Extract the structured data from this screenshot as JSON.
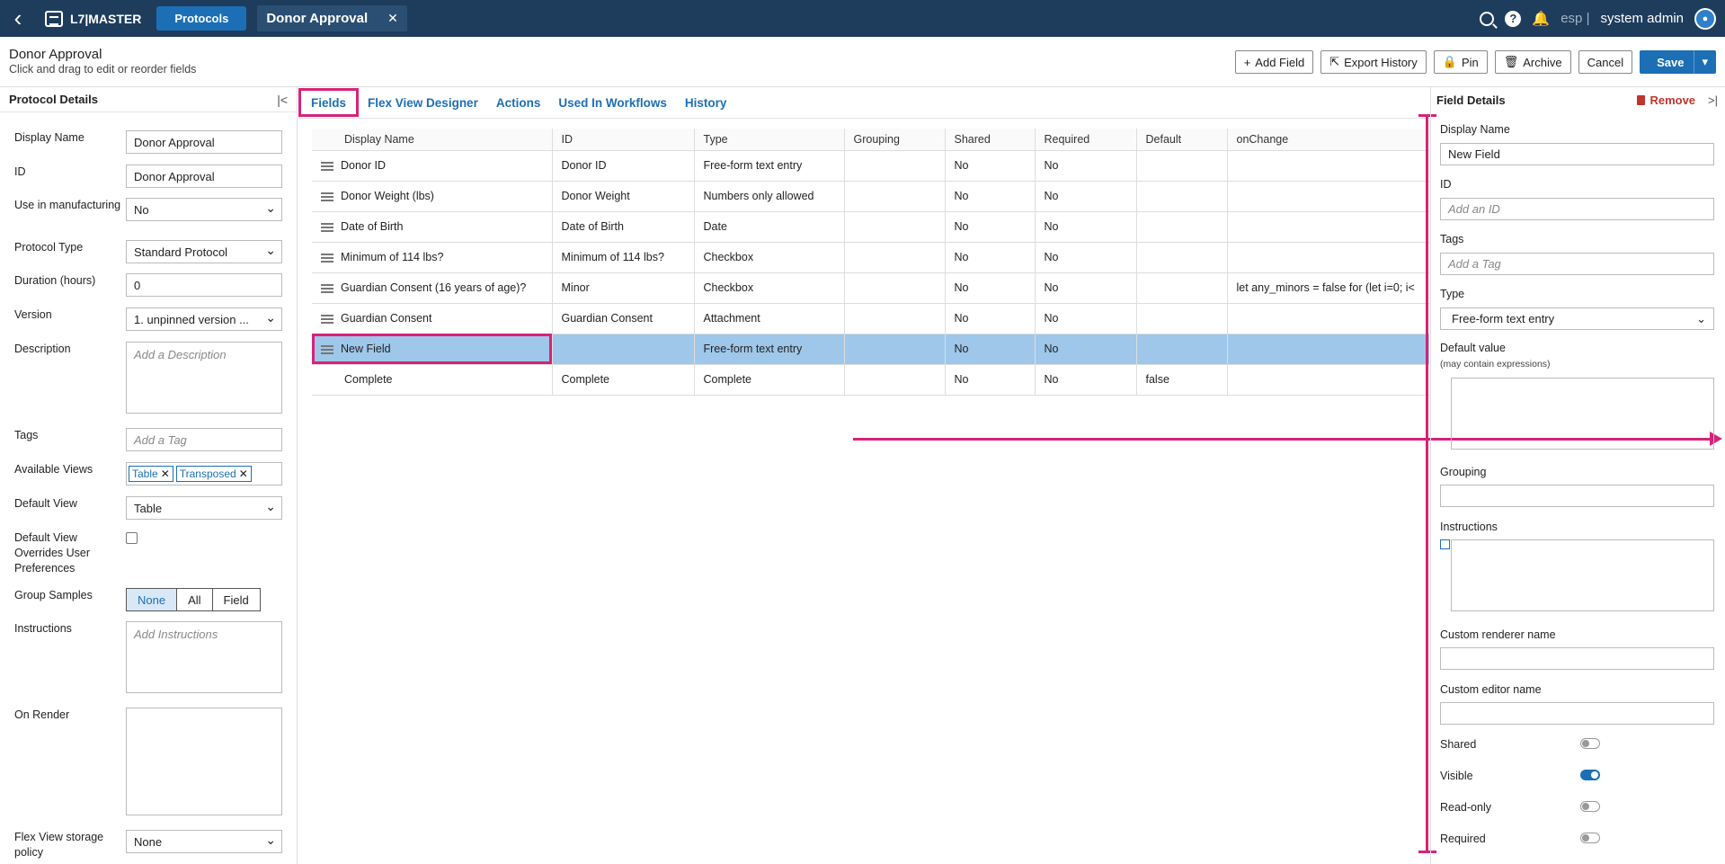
{
  "topbar": {
    "logo": "L7|MASTER",
    "nav_pill": "Protocols",
    "tab": "Donor Approval",
    "lang": "esp |",
    "user": "system admin"
  },
  "header": {
    "title": "Donor Approval",
    "subtitle": "Click and drag to edit or reorder fields",
    "actions": {
      "add_field": "Add Field",
      "export_history": "Export History",
      "pin": "Pin",
      "archive": "Archive",
      "cancel": "Cancel",
      "save": "Save"
    }
  },
  "left": {
    "title": "Protocol Details",
    "display_name_label": "Display Name",
    "display_name": "Donor Approval",
    "id_label": "ID",
    "id": "Donor Approval",
    "manufacturing_label": "Use in manufacturing",
    "manufacturing": "No",
    "protocol_type_label": "Protocol Type",
    "protocol_type": "Standard Protocol",
    "duration_label": "Duration (hours)",
    "duration": "0",
    "version_label": "Version",
    "version": "1. unpinned version ...",
    "description_label": "Description",
    "description_placeholder": "Add a Description",
    "tags_label": "Tags",
    "tags_placeholder": "Add a Tag",
    "views_label": "Available Views",
    "views": [
      "Table",
      "Transposed"
    ],
    "default_view_label": "Default View",
    "default_view": "Table",
    "override_label": "Default View Overrides User Preferences",
    "group_label": "Group Samples",
    "group_options": [
      "None",
      "All",
      "Field"
    ],
    "instructions_label": "Instructions",
    "instructions_placeholder": "Add Instructions",
    "on_render_label": "On Render",
    "storage_label": "Flex View storage policy",
    "storage": "None"
  },
  "tabs": [
    "Fields",
    "Flex View Designer",
    "Actions",
    "Used In Workflows",
    "History"
  ],
  "grid": {
    "columns": [
      "Display Name",
      "ID",
      "Type",
      "Grouping",
      "Shared",
      "Required",
      "Default",
      "onChange"
    ],
    "rows": [
      [
        "Donor ID",
        "Donor ID",
        "Free-form text entry",
        "",
        "No",
        "No",
        "",
        ""
      ],
      [
        "Donor Weight (lbs)",
        "Donor Weight",
        "Numbers only allowed",
        "",
        "No",
        "No",
        "",
        ""
      ],
      [
        "Date of Birth",
        "Date of Birth",
        "Date",
        "",
        "No",
        "No",
        "",
        ""
      ],
      [
        "Minimum of 114 lbs?",
        "Minimum of 114 lbs?",
        "Checkbox",
        "",
        "No",
        "No",
        "",
        ""
      ],
      [
        "Guardian Consent (16 years of age)?",
        "Minor",
        "Checkbox",
        "",
        "No",
        "No",
        "",
        "let any_minors = false for (let i=0; i<"
      ],
      [
        "Guardian Consent",
        "Guardian Consent",
        "Attachment",
        "",
        "No",
        "No",
        "",
        ""
      ],
      [
        "New Field",
        "",
        "Free-form text entry",
        "",
        "No",
        "No",
        "",
        ""
      ],
      [
        "Complete",
        "Complete",
        "Complete",
        "",
        "No",
        "No",
        "false",
        ""
      ]
    ]
  },
  "right": {
    "title": "Field Details",
    "remove": "Remove",
    "display_name_label": "Display Name",
    "display_name": "New Field",
    "id_label": "ID",
    "id_placeholder": "Add an ID",
    "tags_label": "Tags",
    "tags_placeholder": "Add a Tag",
    "type_label": "Type",
    "type": "Free-form text entry",
    "default_label": "Default value",
    "default_hint": "(may contain expressions)",
    "grouping_label": "Grouping",
    "instructions_label": "Instructions",
    "renderer_label": "Custom renderer name",
    "editor_label": "Custom editor name",
    "shared_label": "Shared",
    "visible_label": "Visible",
    "readonly_label": "Read-only",
    "required_label": "Required"
  }
}
